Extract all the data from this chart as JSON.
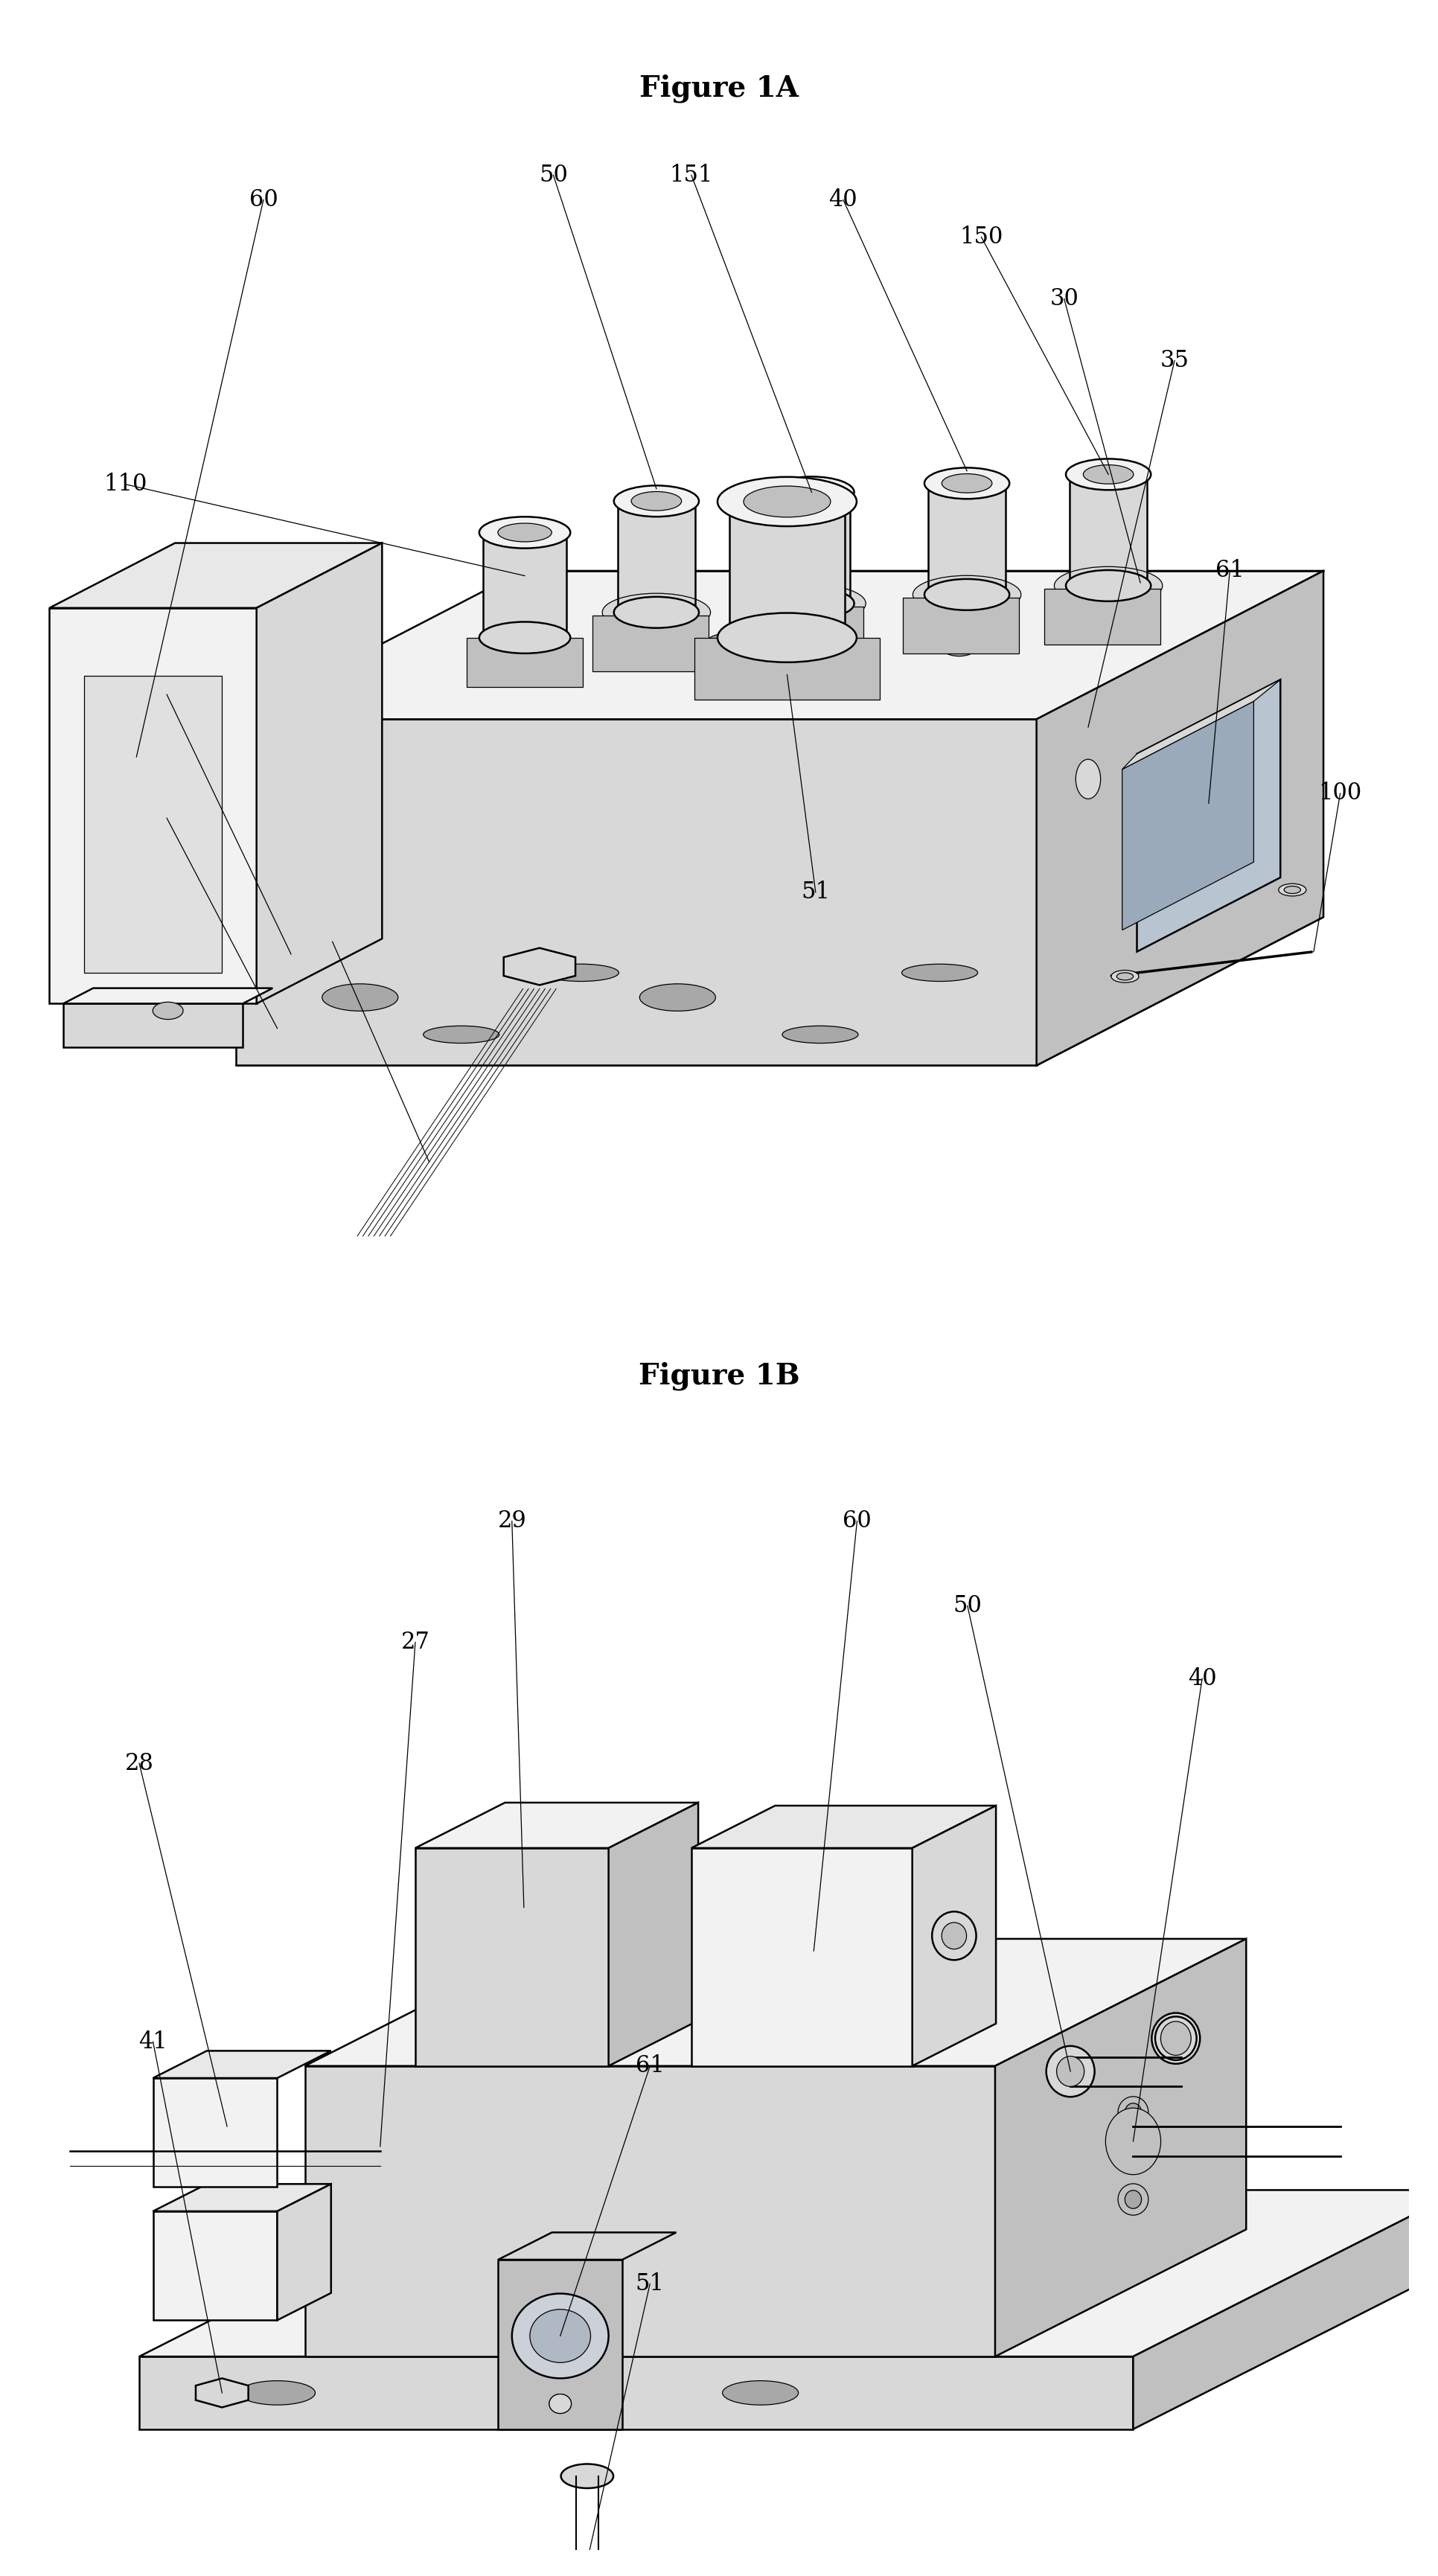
{
  "title1": "Figure 1A",
  "title2": "Figure 1B",
  "background_color": "#ffffff",
  "line_color": "#000000",
  "title_fontsize": 28,
  "label_fontsize": 22,
  "fig_width": 19.32,
  "fig_height": 34.61,
  "lw_main": 1.8,
  "lw_thin": 0.9,
  "face_light": "#f2f2f2",
  "face_mid": "#d8d8d8",
  "face_dark": "#c0c0c0",
  "face_darker": "#a8a8a8"
}
